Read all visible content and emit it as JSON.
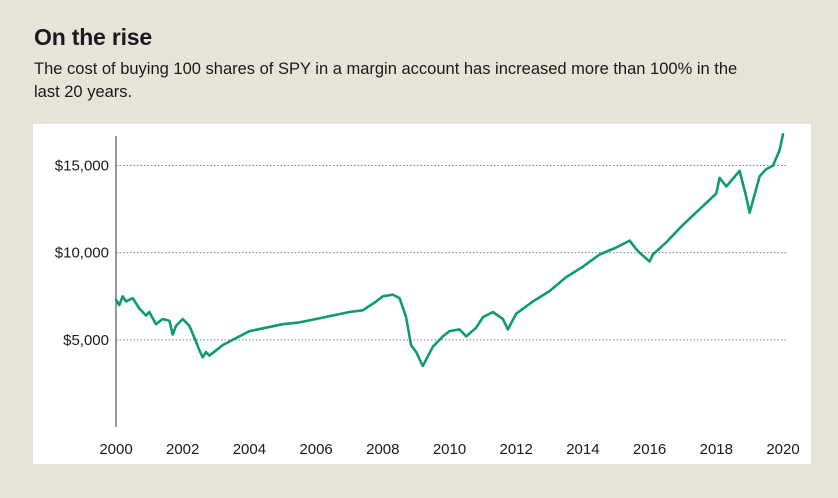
{
  "header": {
    "title": "On the rise",
    "subtitle": "The cost of buying 100 shares of SPY in a margin account has increased more than 100% in the last 20 years."
  },
  "chart_data": {
    "type": "line",
    "title": "On the rise",
    "subtitle": "The cost of buying 100 shares of SPY in a margin account has increased more than 100% in the last 20 years.",
    "xlabel": "",
    "ylabel": "",
    "xlim": [
      2000,
      2020
    ],
    "ylim": [
      0,
      16700
    ],
    "x_ticks": [
      2000,
      2002,
      2004,
      2006,
      2008,
      2010,
      2012,
      2014,
      2016,
      2018,
      2020
    ],
    "x_tick_labels": [
      "2000",
      "2002",
      "2004",
      "2006",
      "2008",
      "2010",
      "2012",
      "2014",
      "2016",
      "2018",
      "2020"
    ],
    "y_ticks": [
      5000,
      10000,
      15000
    ],
    "y_tick_labels": [
      "$5,000",
      "$10,000",
      "$15,000"
    ],
    "grid": "horizontal-dotted",
    "legend": "none",
    "line_color": "#0e9c6b",
    "series": [
      {
        "x": [
          2000.0,
          2000.1,
          2000.2,
          2000.3,
          2000.5,
          2000.7,
          2000.9,
          2001.0,
          2001.2,
          2001.4,
          2001.6,
          2001.7,
          2001.8,
          2002.0,
          2002.2,
          2002.4,
          2002.5,
          2002.6,
          2002.7,
          2002.8,
          2003.0,
          2003.2,
          2003.5,
          2004.0,
          2004.5,
          2005.0,
          2005.5,
          2006.0,
          2006.5,
          2007.0,
          2007.4,
          2007.8,
          2008.0,
          2008.3,
          2008.5,
          2008.7,
          2008.85,
          2009.0,
          2009.2,
          2009.5,
          2009.8,
          2010.0,
          2010.3,
          2010.5,
          2010.8,
          2011.0,
          2011.3,
          2011.6,
          2011.75,
          2012.0,
          2012.5,
          2013.0,
          2013.5,
          2014.0,
          2014.5,
          2015.0,
          2015.4,
          2015.6,
          2015.7,
          2016.0,
          2016.1,
          2016.5,
          2017.0,
          2017.5,
          2018.0,
          2018.1,
          2018.3,
          2018.7,
          2018.9,
          2019.0,
          2019.3,
          2019.5,
          2019.7,
          2019.9,
          2020.0
        ],
        "values": [
          7300,
          7000,
          7500,
          7200,
          7400,
          6800,
          6400,
          6600,
          5900,
          6200,
          6100,
          5300,
          5800,
          6200,
          5800,
          4900,
          4400,
          4000,
          4300,
          4100,
          4400,
          4700,
          5000,
          5500,
          5700,
          5900,
          6000,
          6200,
          6400,
          6600,
          6700,
          7200,
          7500,
          7600,
          7400,
          6300,
          4700,
          4300,
          3500,
          4600,
          5200,
          5500,
          5600,
          5200,
          5700,
          6300,
          6600,
          6200,
          5600,
          6500,
          7200,
          7800,
          8600,
          9200,
          9900,
          10300,
          10700,
          10200,
          10000,
          9500,
          9900,
          10600,
          11600,
          12500,
          13400,
          14300,
          13800,
          14700,
          13200,
          12300,
          14400,
          14800,
          15000,
          15900,
          16800
        ]
      }
    ]
  }
}
